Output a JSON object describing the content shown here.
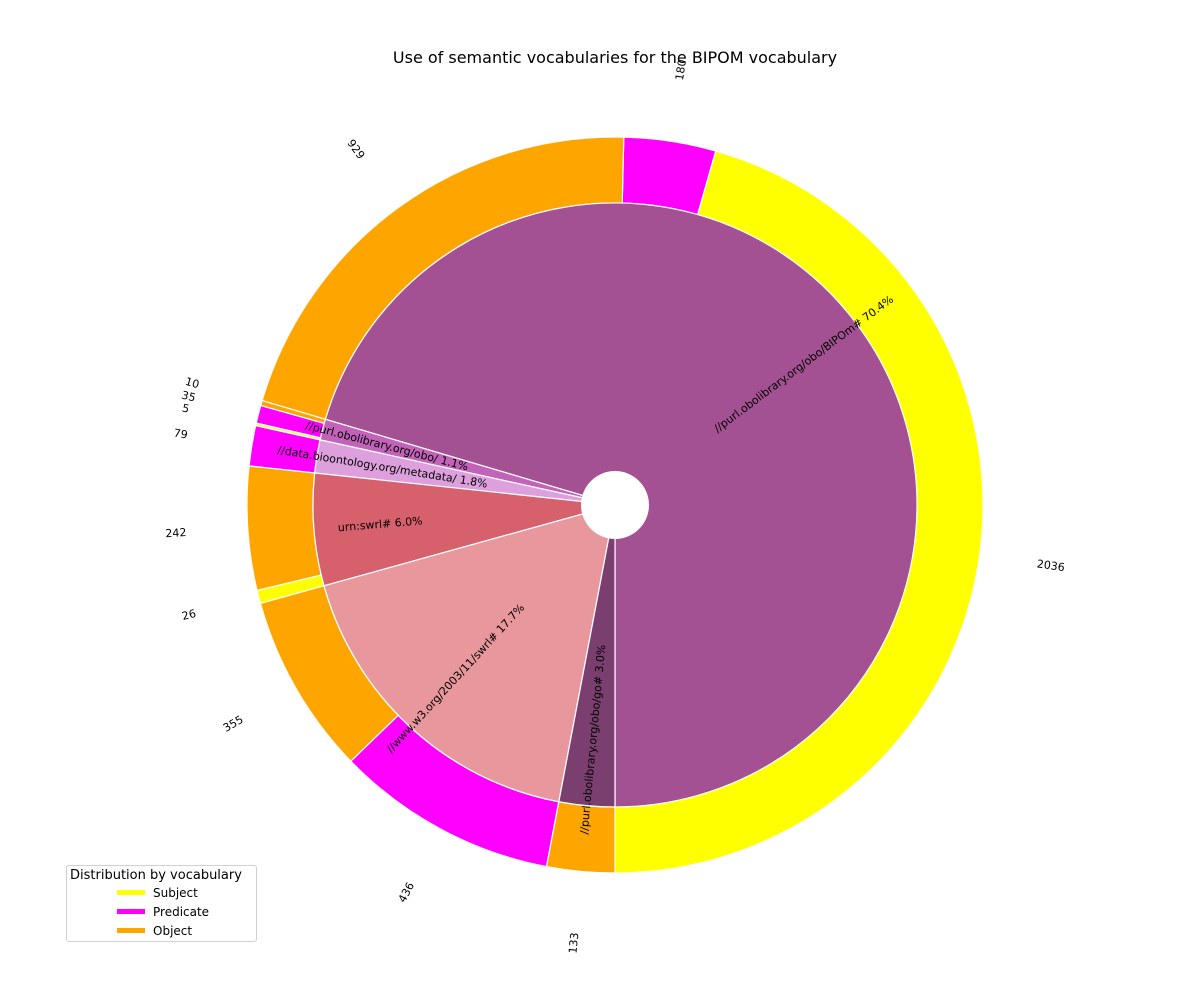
{
  "chart_data": {
    "type": "pie",
    "title": "Use of semantic vocabularies for the BIPOM vocabulary",
    "legend": {
      "title": "Distribution by vocabulary",
      "position": "lower-left",
      "entries": [
        {
          "label": "Subject",
          "color": "#ffff00"
        },
        {
          "label": "Predicate",
          "color": "#ff00ff"
        },
        {
          "label": "Object",
          "color": "#ffa500"
        }
      ]
    },
    "inner_ring": [
      {
        "label": "//purl.obolibrary.org/obo/BIPOm#",
        "percent_label": "70.4%",
        "value": 3145,
        "color": "#a35192"
      },
      {
        "label": "//purl.obolibrary.org/obo/",
        "percent_label": "1.1%",
        "value": 50,
        "color": "#c262b8"
      },
      {
        "label": "//data.bioontology.org/metadata/",
        "percent_label": "1.8%",
        "value": 79,
        "color": "#dda0dd"
      },
      {
        "label": "urn:swrl#",
        "percent_label": "6.0%",
        "value": 268,
        "color": "#d6606c"
      },
      {
        "label": "//www.w3.org/2003/11/swrl#",
        "percent_label": "17.7%",
        "value": 791,
        "color": "#e8989c"
      },
      {
        "label": "//purl.obolibrary.org/obo/go#",
        "percent_label": "3.0%",
        "value": 133,
        "color": "#7b3f6f"
      }
    ],
    "outer_ring": [
      {
        "count_label": "2036",
        "value": 2036,
        "role": "Subject",
        "color": "#ffff00"
      },
      {
        "count_label": "180",
        "value": 180,
        "role": "Predicate",
        "color": "#ff00ff"
      },
      {
        "count_label": "929",
        "value": 929,
        "role": "Object",
        "color": "#ffa500"
      },
      {
        "count_label": "10",
        "value": 10,
        "role": "Object",
        "color": "#ffa500"
      },
      {
        "count_label": "35",
        "value": 35,
        "role": "Predicate",
        "color": "#ff00ff"
      },
      {
        "count_label": "5",
        "value": 5,
        "role": "Subject",
        "color": "#ffff00"
      },
      {
        "count_label": "79",
        "value": 79,
        "role": "Predicate",
        "color": "#ff00ff"
      },
      {
        "count_label": "242",
        "value": 242,
        "role": "Object",
        "color": "#ffa500"
      },
      {
        "count_label": "26",
        "value": 26,
        "role": "Subject",
        "color": "#ffff00"
      },
      {
        "count_label": "355",
        "value": 355,
        "role": "Object",
        "color": "#ffa500"
      },
      {
        "count_label": "436",
        "value": 436,
        "role": "Predicate",
        "color": "#ff00ff"
      },
      {
        "count_label": "133",
        "value": 133,
        "role": "Object",
        "color": "#ffa500"
      }
    ]
  }
}
